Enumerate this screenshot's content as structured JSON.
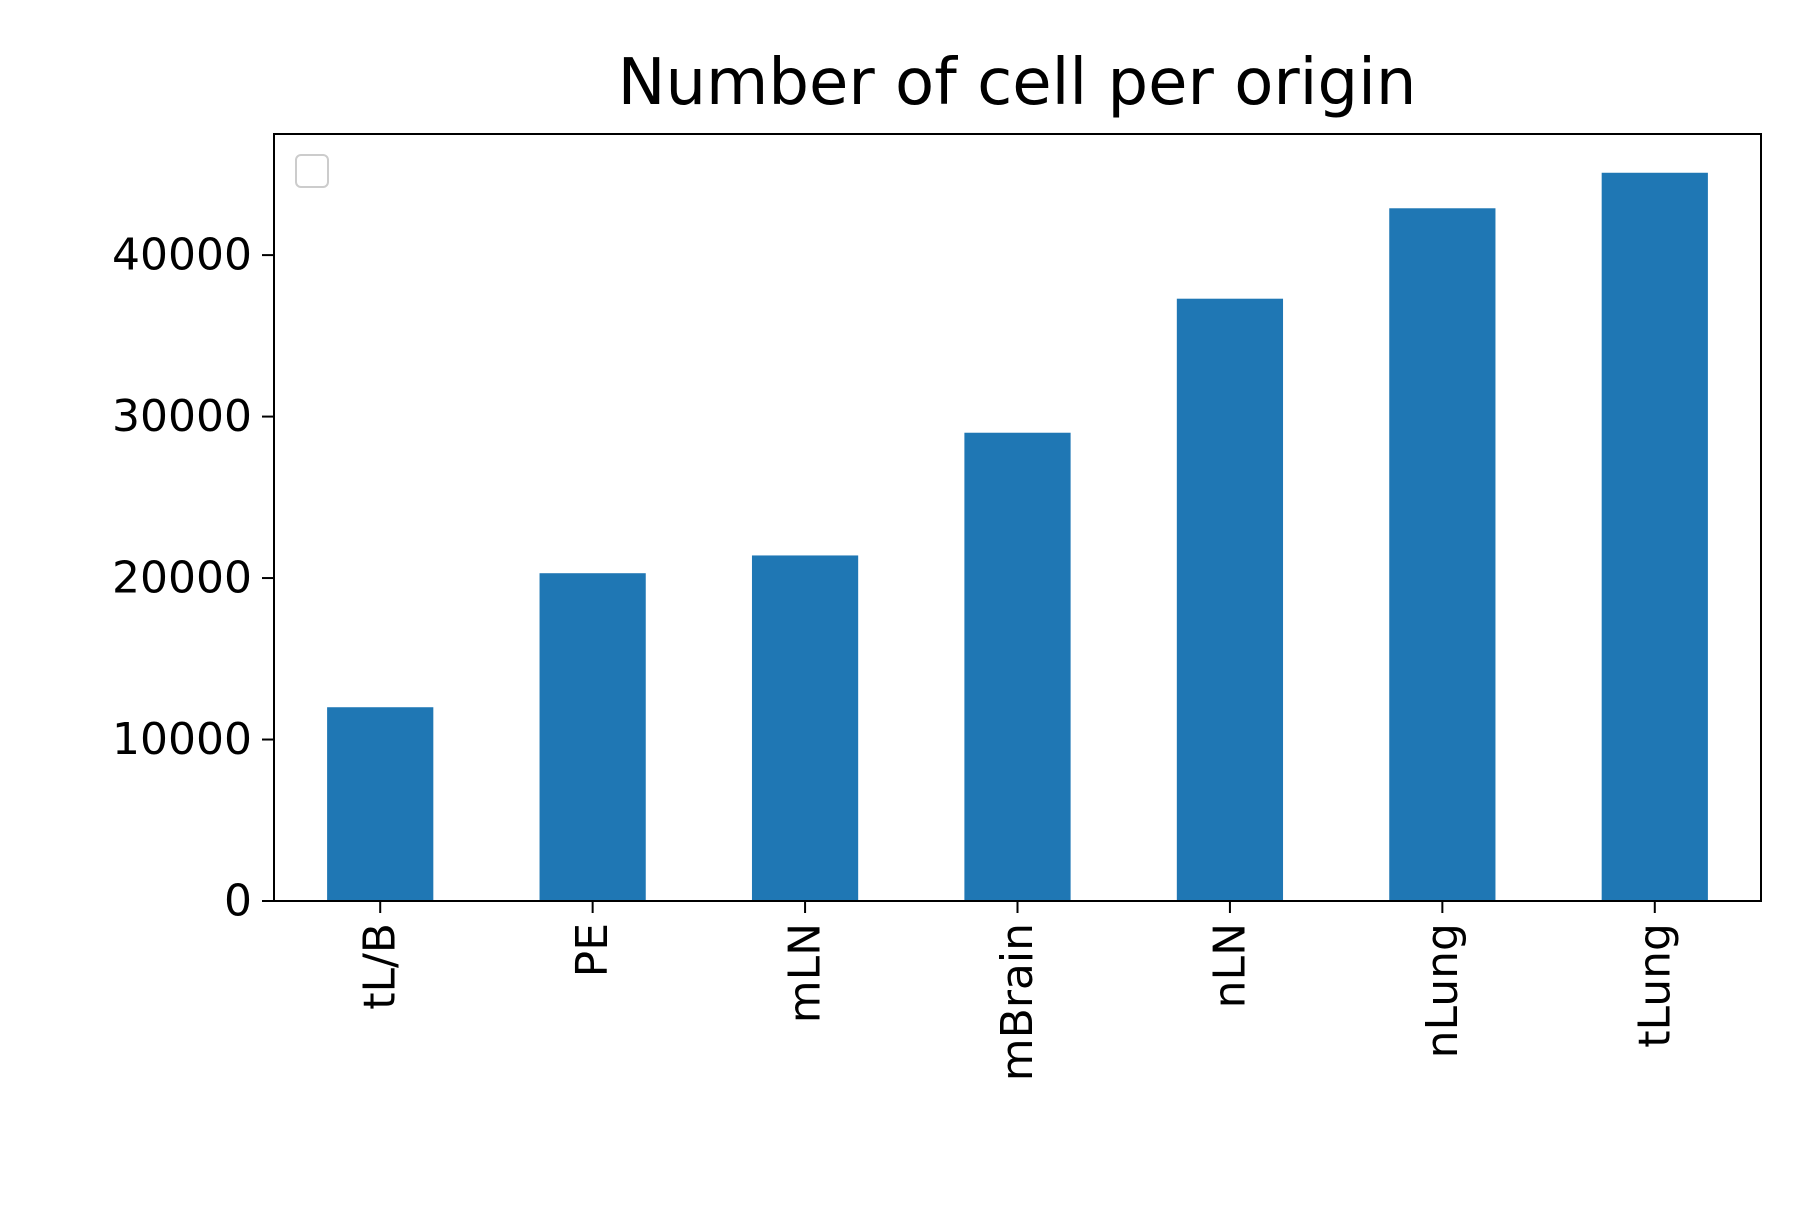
{
  "chart_data": {
    "type": "bar",
    "title": "Number of cell per origin",
    "xlabel": "",
    "ylabel": "",
    "categories": [
      "tL/B",
      "PE",
      "mLN",
      "mBrain",
      "nLN",
      "nLung",
      "tLung"
    ],
    "values": [
      12000,
      20300,
      21400,
      29000,
      37300,
      42900,
      45100
    ],
    "ylim": [
      0,
      47500
    ],
    "yticks": [
      0,
      10000,
      20000,
      30000,
      40000
    ],
    "ytick_labels": [
      "0",
      "10000",
      "20000",
      "30000",
      "40000"
    ],
    "bar_color": "#1f77b4",
    "grid": false,
    "legend": {
      "placement": "upper-left",
      "entries": []
    }
  }
}
